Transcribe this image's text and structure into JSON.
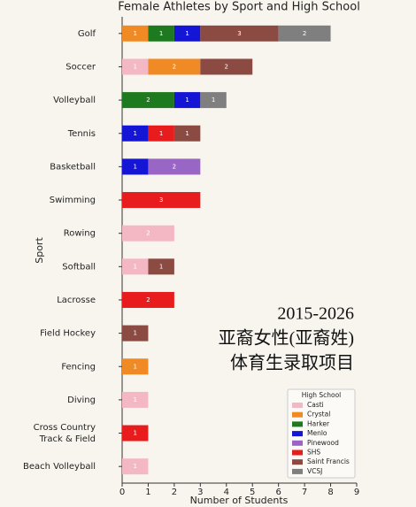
{
  "chart_data": {
    "type": "stacked-barh",
    "title": "Female Athletes by Sport and High School",
    "x_label": "Number of Students",
    "y_label": "Sport",
    "categories": [
      "Golf",
      "Soccer",
      "Volleyball",
      "Tennis",
      "Basketball",
      "Swimming",
      "Rowing",
      "Softball",
      "Lacrosse",
      "Field Hockey",
      "Fencing",
      "Diving",
      "Cross Country\nTrack & Field",
      "Beach Volleyball"
    ],
    "legend_title": "High School",
    "legend_position": "lower right",
    "series": [
      {
        "name": "Casti",
        "color": "#f4b8c4",
        "values": [
          0,
          1,
          0,
          0,
          0,
          0,
          2,
          1,
          0,
          0,
          0,
          1,
          0,
          1
        ]
      },
      {
        "name": "Crystal",
        "color": "#f08a24",
        "values": [
          1,
          2,
          0,
          0,
          0,
          0,
          0,
          0,
          0,
          0,
          1,
          0,
          0,
          0
        ]
      },
      {
        "name": "Harker",
        "color": "#1e7a1e",
        "values": [
          1,
          0,
          2,
          0,
          0,
          0,
          0,
          0,
          0,
          0,
          0,
          0,
          0,
          0
        ]
      },
      {
        "name": "Menlo",
        "color": "#1515d6",
        "values": [
          1,
          0,
          1,
          1,
          1,
          0,
          0,
          0,
          0,
          0,
          0,
          0,
          0,
          0
        ]
      },
      {
        "name": "Pinewood",
        "color": "#9a66c6",
        "values": [
          0,
          0,
          0,
          0,
          2,
          0,
          0,
          0,
          0,
          0,
          0,
          0,
          0,
          0
        ]
      },
      {
        "name": "SHS",
        "color": "#e81c1c",
        "values": [
          0,
          0,
          0,
          1,
          0,
          3,
          0,
          0,
          2,
          0,
          0,
          0,
          1,
          0
        ]
      },
      {
        "name": "Saint Francis",
        "color": "#8b4a42",
        "values": [
          3,
          2,
          0,
          1,
          0,
          0,
          0,
          1,
          0,
          1,
          0,
          0,
          0,
          0
        ]
      },
      {
        "name": "VCSJ",
        "color": "#7f7f7f",
        "values": [
          2,
          0,
          1,
          0,
          0,
          0,
          0,
          0,
          0,
          0,
          0,
          0,
          0,
          0
        ]
      }
    ],
    "xlim": [
      0,
      9
    ],
    "xticks": [
      0,
      1,
      2,
      3,
      4,
      5,
      6,
      7,
      8,
      9
    ],
    "annotations": [
      "2015-2026",
      "亚裔女性(亚裔姓)",
      "体育生录取项目"
    ]
  }
}
